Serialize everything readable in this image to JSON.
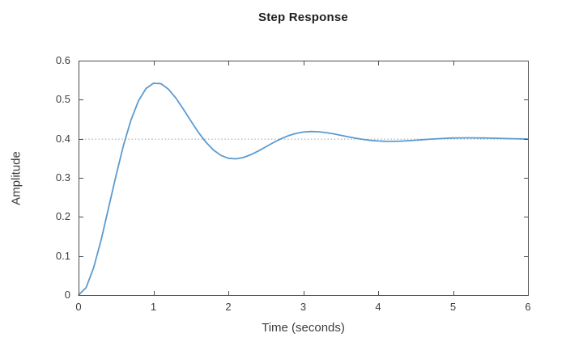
{
  "colors": {
    "background": "#ffffff",
    "curve": "#5b9bd0",
    "steady_state_line": "#9e9e9e",
    "axis": "#4d4d4d",
    "title_text": "#1f1f1f",
    "label_text": "#3d3d3d"
  },
  "chart_data": {
    "type": "line",
    "title": "Step Response",
    "xlabel": "Time (seconds)",
    "ylabel": "Amplitude",
    "xlim": [
      0,
      6
    ],
    "ylim": [
      0,
      0.6
    ],
    "grid": false,
    "legend": "none",
    "x_ticks": [
      0,
      1,
      2,
      3,
      4,
      5,
      6
    ],
    "x_tick_labels": [
      "0",
      "1",
      "2",
      "3",
      "4",
      "5",
      "6"
    ],
    "y_ticks": [
      0,
      0.1,
      0.2,
      0.3,
      0.4,
      0.5,
      0.6
    ],
    "y_tick_labels": [
      "0",
      "0.1",
      "0.2",
      "0.3",
      "0.4",
      "0.5",
      "0.6"
    ],
    "annotations": [
      {
        "name": "steady-state-line",
        "y": 0.4,
        "style": "dotted",
        "color": "#9e9e9e"
      }
    ],
    "key_features": {
      "steady_state_value": 0.4,
      "peak_value": 0.542,
      "peak_time": 1.04,
      "undershoot_value": 0.349,
      "undershoot_time": 2.05,
      "second_peak_value": 0.418,
      "second_peak_time": 3.1
    },
    "series": [
      {
        "name": "step-response",
        "color": "#5b9bd0",
        "x": [
          0,
          0.1,
          0.2,
          0.3,
          0.4,
          0.5,
          0.6,
          0.7,
          0.8,
          0.9,
          1.0,
          1.1,
          1.2,
          1.3,
          1.4,
          1.5,
          1.6,
          1.7,
          1.8,
          1.9,
          2.0,
          2.1,
          2.2,
          2.3,
          2.4,
          2.5,
          2.6,
          2.7,
          2.8,
          2.9,
          3.0,
          3.1,
          3.2,
          3.3,
          3.4,
          3.5,
          3.6,
          3.7,
          3.8,
          3.9,
          4.0,
          4.1,
          4.2,
          4.3,
          4.4,
          4.5,
          4.6,
          4.7,
          4.8,
          4.9,
          5.0,
          5.1,
          5.2,
          5.3,
          5.4,
          5.5,
          5.6,
          5.7,
          5.8,
          5.9,
          6.0
        ],
        "y": [
          0,
          0.0188,
          0.0689,
          0.1401,
          0.2224,
          0.3058,
          0.3832,
          0.4482,
          0.497,
          0.5286,
          0.542,
          0.541,
          0.527,
          0.5039,
          0.4756,
          0.4454,
          0.4165,
          0.3912,
          0.3713,
          0.3575,
          0.3501,
          0.3486,
          0.352,
          0.3591,
          0.3687,
          0.3795,
          0.3901,
          0.3998,
          0.4077,
          0.4136,
          0.4171,
          0.4185,
          0.4179,
          0.4158,
          0.4127,
          0.4089,
          0.405,
          0.4014,
          0.3983,
          0.3958,
          0.3943,
          0.3935,
          0.3934,
          0.394,
          0.395,
          0.3962,
          0.3976,
          0.399,
          0.4002,
          0.4012,
          0.4019,
          0.4023,
          0.4024,
          0.4023,
          0.4019,
          0.4015,
          0.4011,
          0.4005,
          0.4001,
          0.3997,
          0.3994
        ]
      }
    ]
  }
}
